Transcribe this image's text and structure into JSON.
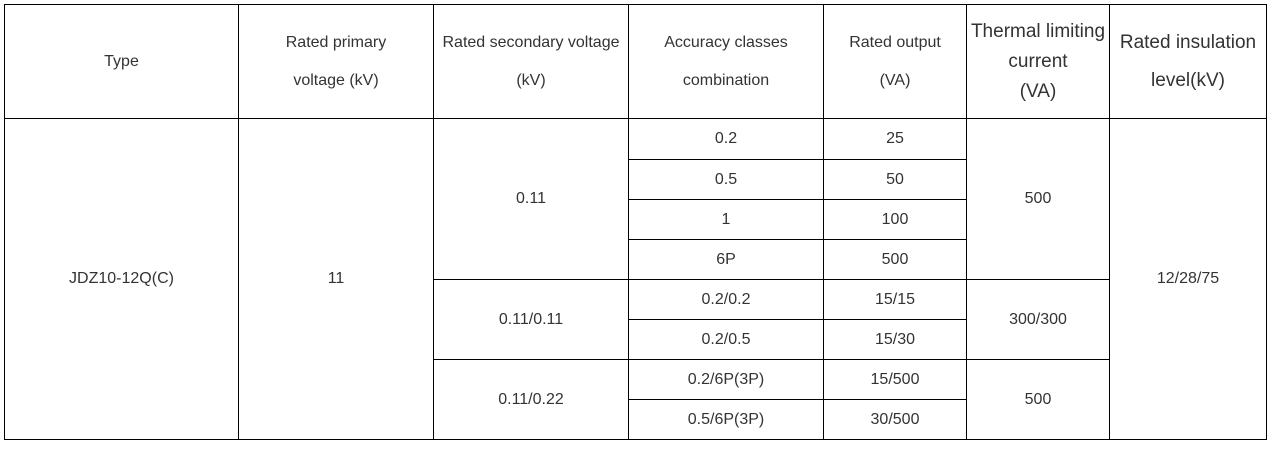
{
  "headers": {
    "type": "Type",
    "primary_voltage": [
      "Rated primary",
      "voltage (kV)"
    ],
    "secondary_voltage": [
      "Rated secondary voltage",
      "(kV)"
    ],
    "accuracy": [
      "Accuracy classes",
      "combination"
    ],
    "rated_output": [
      "Rated output",
      "(VA)"
    ],
    "thermal": [
      "Thermal limiting",
      "current",
      "(VA)"
    ],
    "insulation": [
      "Rated insulation",
      "level(kV)"
    ]
  },
  "body": {
    "type": "JDZ10-12Q(C)",
    "primary_voltage": "11",
    "insulation": "12/28/75",
    "groups": [
      {
        "secondary_voltage": "0.11",
        "thermal": "500",
        "rows": [
          {
            "accuracy": "0.2",
            "output": "25"
          },
          {
            "accuracy": "0.5",
            "output": "50"
          },
          {
            "accuracy": "1",
            "output": "100"
          },
          {
            "accuracy": "6P",
            "output": "500"
          }
        ]
      },
      {
        "secondary_voltage": "0.11/0.11",
        "thermal": "300/300",
        "rows": [
          {
            "accuracy": "0.2/0.2",
            "output": "15/15"
          },
          {
            "accuracy": "0.2/0.5",
            "output": "15/30"
          }
        ]
      },
      {
        "secondary_voltage": "0.11/0.22",
        "thermal": "500",
        "rows": [
          {
            "accuracy": "0.2/6P(3P)",
            "output": "15/500"
          },
          {
            "accuracy": "0.5/6P(3P)",
            "output": "30/500"
          }
        ]
      }
    ]
  }
}
